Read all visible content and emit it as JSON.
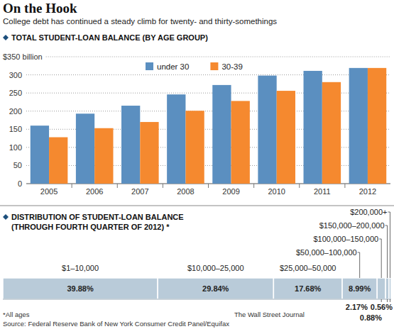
{
  "header": {
    "title": "On the Hook",
    "subtitle": "College debt has continued a steady climb for twenty- and thirty-somethings"
  },
  "chart_data": [
    {
      "type": "bar",
      "title": "TOTAL STUDENT-LOAN BALANCE (BY AGE GROUP)",
      "categories": [
        "2005",
        "2006",
        "2007",
        "2008",
        "2009",
        "2010",
        "2011",
        "2012"
      ],
      "series": [
        {
          "name": "under 30",
          "color": "#5b8fc0",
          "values": [
            160,
            193,
            215,
            246,
            272,
            298,
            311,
            319
          ]
        },
        {
          "name": "30-39",
          "color": "#f5892f",
          "values": [
            128,
            153,
            170,
            201,
            228,
            256,
            280,
            319
          ]
        }
      ],
      "ylim": [
        0,
        350
      ],
      "yticks": [
        0,
        50,
        100,
        150,
        200,
        250,
        300,
        {
          "value": 350,
          "label": "$350 billion"
        }
      ],
      "grid": true,
      "legend": "top"
    },
    {
      "type": "bar",
      "title": "DISTRIBUTION OF STUDENT-LOAN BALANCE",
      "subtitle": "(THROUGH FOURTH QUARTER OF 2012) *",
      "orientation": "horizontal",
      "stacked": true,
      "data_labels": true,
      "tick_labels": false,
      "categories": [
        null
      ],
      "xlim": [
        0,
        100
      ],
      "series": [
        {
          "name": "$1–10,000",
          "color": "#b9cbd9",
          "values": [
            39.88
          ],
          "value_labels": [
            "39.88%"
          ]
        },
        {
          "name": "$10,000–25,000",
          "color": "#b9cbd9",
          "values": [
            29.84
          ],
          "value_labels": [
            "29.84%"
          ]
        },
        {
          "name": "$25,000–50,000",
          "color": "#b9cbd9",
          "values": [
            17.68
          ],
          "value_labels": [
            "17.68%"
          ]
        },
        {
          "name": "$50,000–100,000",
          "color": "#b9cbd9",
          "values": [
            8.99
          ],
          "value_labels": [
            "8.99%"
          ]
        },
        {
          "name": "$100,000–150,000",
          "color": "#b9cbd9",
          "values": [
            2.17
          ],
          "value_labels": [
            "2.17%"
          ]
        },
        {
          "name": "$150,000–200,000",
          "color": "#b9cbd9",
          "values": [
            0.88
          ],
          "value_labels": [
            "0.88%"
          ]
        },
        {
          "name": "$200,000+",
          "color": "#b9cbd9",
          "values": [
            0.56
          ],
          "value_labels": [
            "0.56%"
          ]
        }
      ]
    }
  ],
  "footer": {
    "note": "*All ages",
    "source": "Source: Federal Reserve Bank of New York Consumer Credit Panel/Equifax",
    "credit": "The Wall Street Journal"
  }
}
